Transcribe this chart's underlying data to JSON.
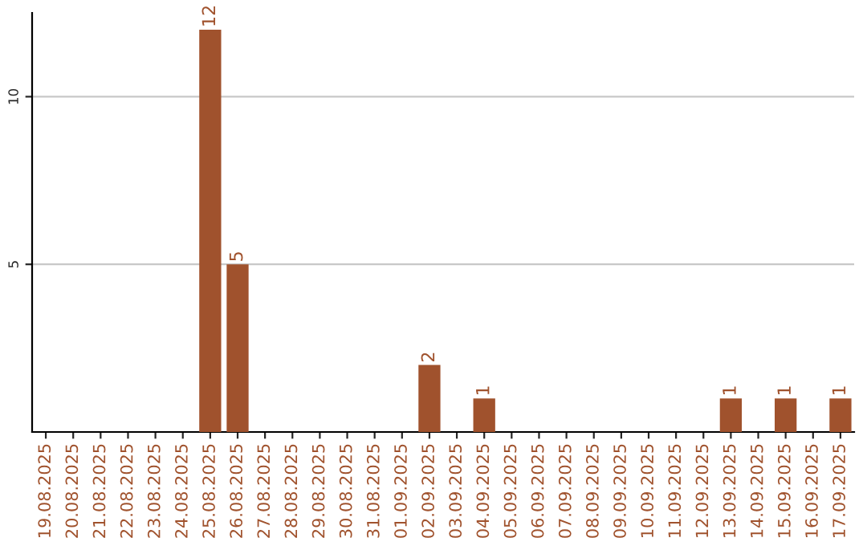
{
  "chart_data": {
    "type": "bar",
    "categories": [
      "19.08.2025",
      "20.08.2025",
      "21.08.2025",
      "22.08.2025",
      "23.08.2025",
      "24.08.2025",
      "25.08.2025",
      "26.08.2025",
      "27.08.2025",
      "28.08.2025",
      "29.08.2025",
      "30.08.2025",
      "31.08.2025",
      "01.09.2025",
      "02.09.2025",
      "03.09.2025",
      "04.09.2025",
      "05.09.2025",
      "06.09.2025",
      "07.09.2025",
      "08.09.2025",
      "09.09.2025",
      "10.09.2025",
      "11.09.2025",
      "12.09.2025",
      "13.09.2025",
      "14.09.2025",
      "15.09.2025",
      "16.09.2025",
      "17.09.2025"
    ],
    "values": [
      null,
      null,
      null,
      null,
      null,
      null,
      12,
      5,
      null,
      null,
      null,
      null,
      null,
      null,
      2,
      null,
      1,
      null,
      null,
      null,
      null,
      null,
      null,
      null,
      null,
      1,
      null,
      1,
      null,
      1
    ],
    "value_labels": [
      null,
      null,
      null,
      null,
      null,
      null,
      "12",
      "5",
      null,
      null,
      null,
      null,
      null,
      null,
      "2",
      null,
      "1",
      null,
      null,
      null,
      null,
      null,
      null,
      null,
      null,
      "1",
      null,
      "1",
      null,
      "1"
    ],
    "color": "#a0522d",
    "ylim": [
      0,
      12.5
    ],
    "yticks": [
      5,
      10
    ],
    "grid": "y"
  }
}
